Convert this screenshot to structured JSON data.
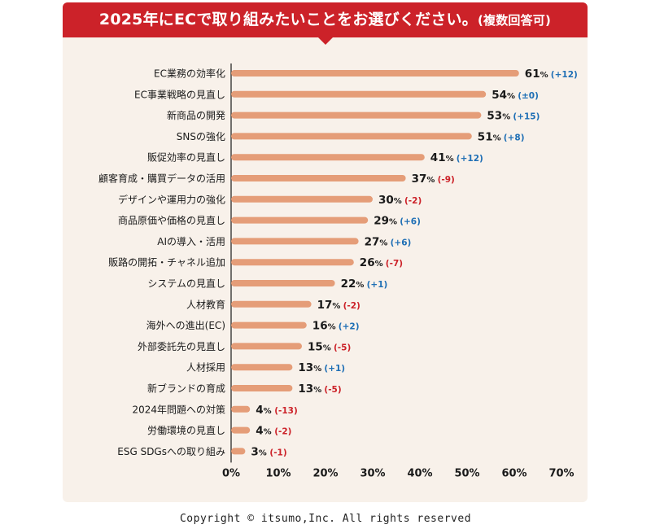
{
  "header": {
    "title": "2025年にECで取り組みたいことをお選びください。",
    "note": "(複数回答可)"
  },
  "colors": {
    "banner": "#cc2229",
    "card": "#f8f1ea",
    "bar": "#e59d78",
    "positive": "#1f6fb5",
    "negative": "#cc2229"
  },
  "chart_data": {
    "type": "bar",
    "orientation": "horizontal",
    "title": "2025年にECで取り組みたいことをお選びください。(複数回答可)",
    "xlim": [
      0,
      70
    ],
    "x_ticks": [
      "0%",
      "10%",
      "20%",
      "30%",
      "40%",
      "50%",
      "60%",
      "70%"
    ],
    "unit": "%",
    "categories": [
      "EC業務の効率化",
      "EC事業戦略の見直し",
      "新商品の開発",
      "SNSの強化",
      "販促効率の見直し",
      "顧客育成・購買データの活用",
      "デザインや運用力の強化",
      "商品原価や価格の見直し",
      "AIの導入・活用",
      "販路の開拓・チャネル追加",
      "システムの見直し",
      "人材教育",
      "海外への進出(EC)",
      "外部委託先の見直し",
      "人材採用",
      "新ブランドの育成",
      "2024年問題への対策",
      "労働環境の見直し",
      "ESG SDGsへの取り組み"
    ],
    "values": [
      61,
      54,
      53,
      51,
      41,
      37,
      30,
      29,
      27,
      26,
      22,
      17,
      16,
      15,
      13,
      13,
      4,
      4,
      3
    ],
    "changes": [
      "+12",
      "±0",
      "+15",
      "+8",
      "+12",
      "-9",
      "-2",
      "+6",
      "+6",
      "-7",
      "+1",
      "-2",
      "+2",
      "-5",
      "+1",
      "-5",
      "-13",
      "-2",
      "-1"
    ]
  },
  "footer": {
    "copyright": "Copyright © itsumo,Inc. All rights reserved"
  }
}
